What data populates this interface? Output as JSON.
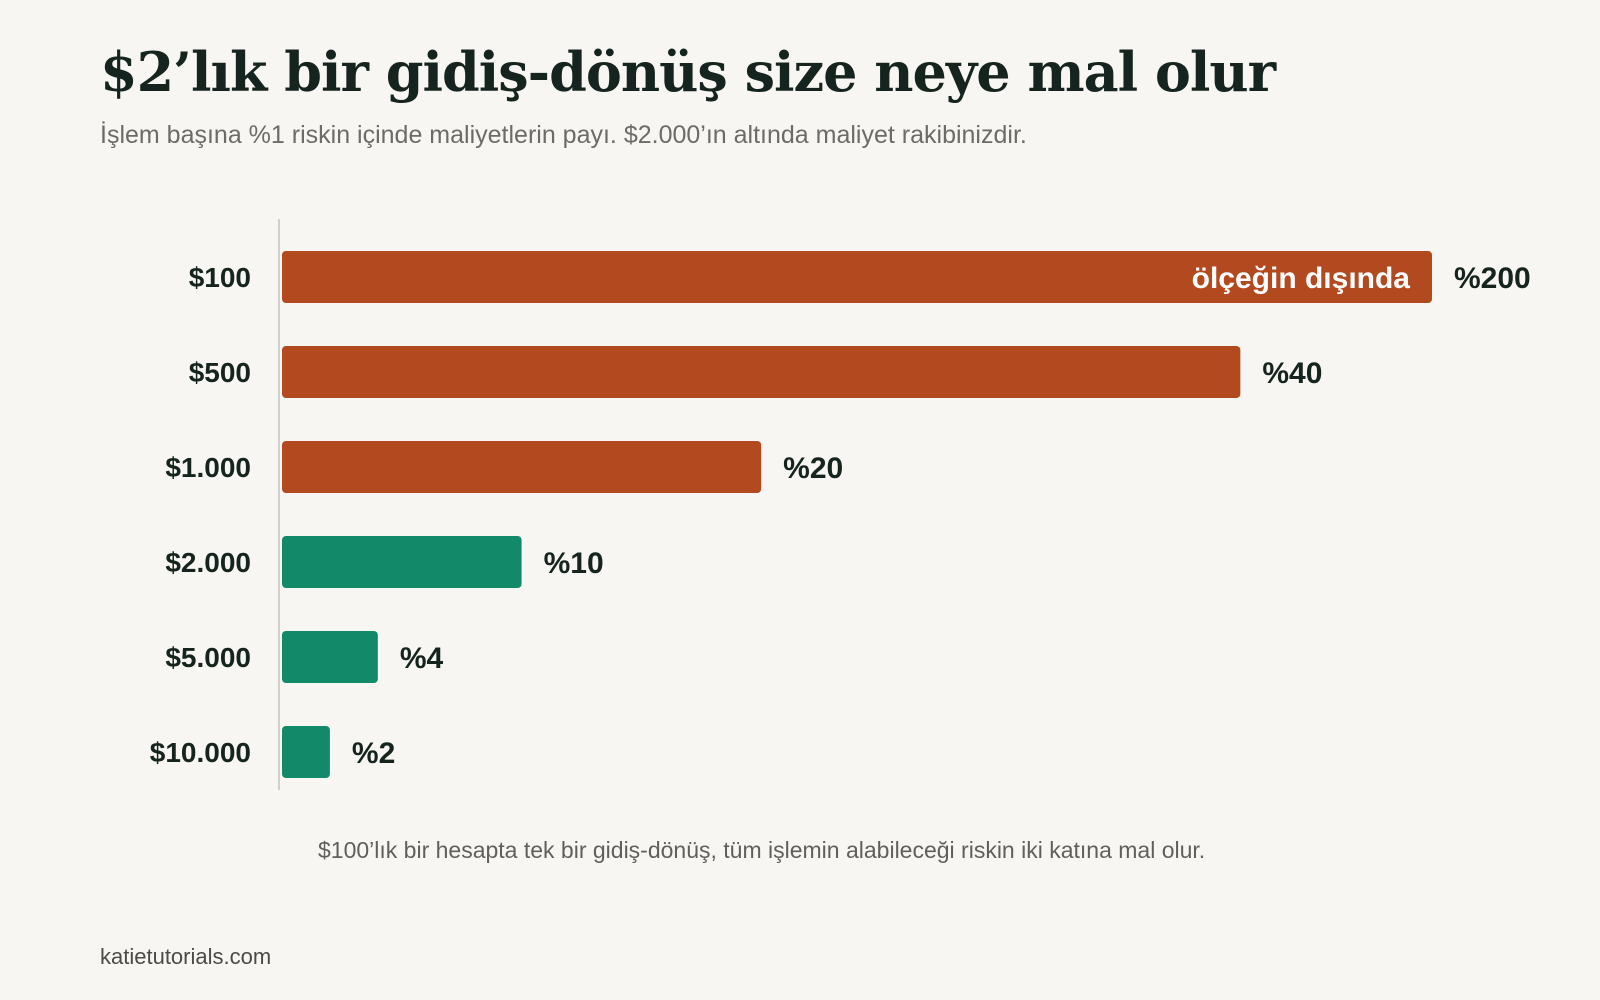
{
  "header": {
    "title": "$2’lık bir gidiş-dönüş size neye mal olur",
    "subtitle": "İşlem başına %1 riskin içinde maliyetlerin payı. $2.000’ın altında maliyet rakibinizdir."
  },
  "chart_data": {
    "type": "bar",
    "orientation": "horizontal",
    "categories": [
      "$100",
      "$500",
      "$1.000",
      "$2.000",
      "$5.000",
      "$10.000"
    ],
    "values": [
      200,
      40,
      20,
      10,
      4,
      2
    ],
    "value_labels": [
      "%200",
      "%40",
      "%20",
      "%10",
      "%4",
      "%2"
    ],
    "clipped_bar_label": "ölçeğin dışında",
    "axis_max": 48,
    "grid": false,
    "legend": "none",
    "colors": {
      "above_threshold": "#b3491e",
      "below_threshold": "#128a69",
      "axis_line": "#d3d0ca"
    },
    "threshold_value": 10
  },
  "footer": {
    "note": "$100’lık bir hesapta tek bir gidiş-dönüş, tüm işlemin alabileceği riskin iki katına mal olur.",
    "source": "katietutorials.com"
  }
}
